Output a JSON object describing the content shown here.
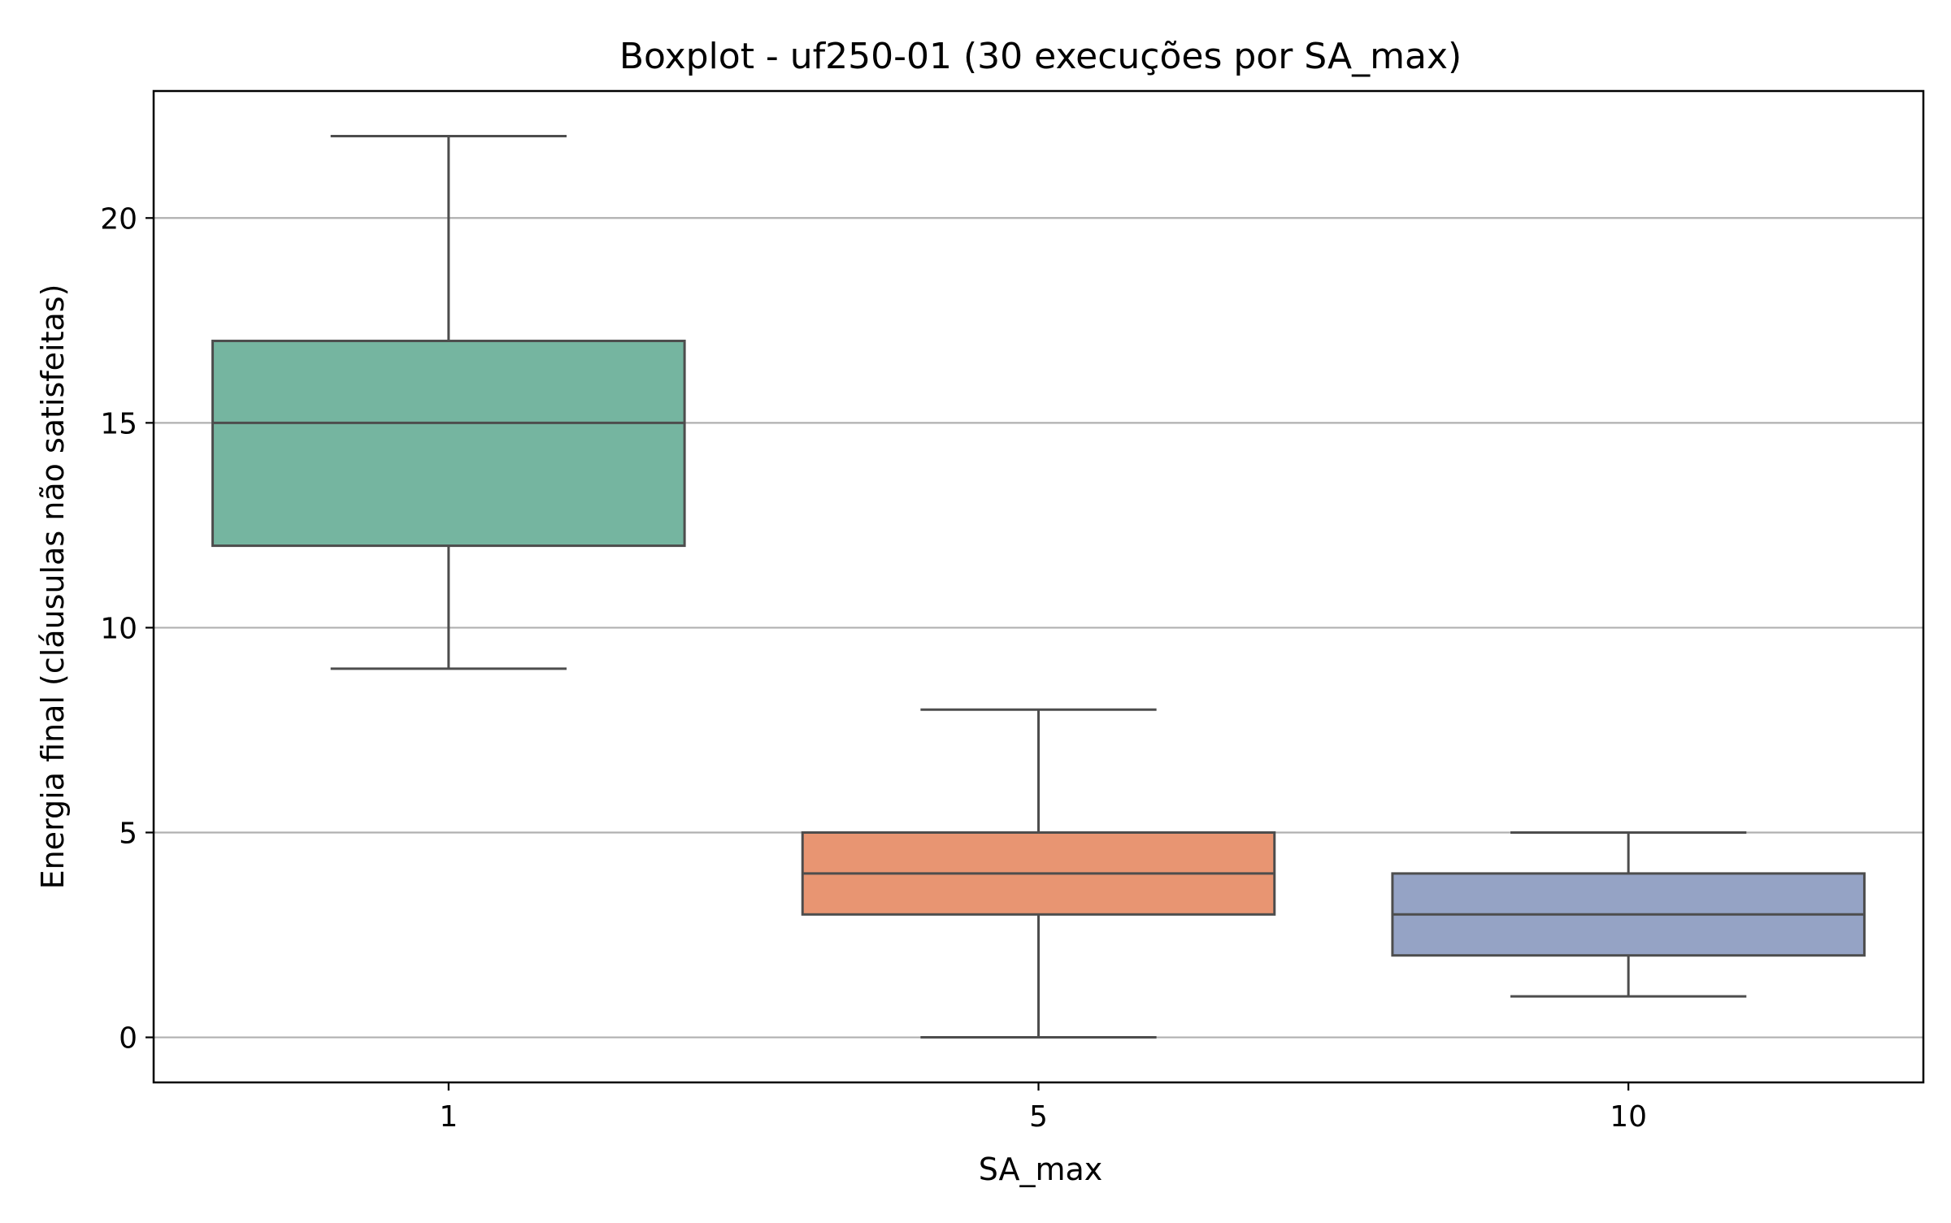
{
  "chart_data": {
    "type": "boxplot",
    "title": "Boxplot - uf250-01 (30 execuções por SA_max)",
    "xlabel": "SA_max",
    "ylabel": "Energia final (cláusulas não satisfeitas)",
    "categories": [
      "1",
      "5",
      "10"
    ],
    "yticks": [
      0,
      5,
      10,
      15,
      20
    ],
    "yticklabels": [
      "0",
      "5",
      "10",
      "15",
      "20"
    ],
    "ylim": [
      -1.1,
      23.1
    ],
    "grid": "y",
    "boxes": [
      {
        "category": "1",
        "whisker_low": 9,
        "q1": 12,
        "median": 15,
        "q3": 17,
        "whisker_high": 22,
        "color": "#75b5a0"
      },
      {
        "category": "5",
        "whisker_low": 0,
        "q1": 3,
        "median": 4,
        "q3": 5,
        "whisker_high": 8,
        "color": "#e89572"
      },
      {
        "category": "10",
        "whisker_low": 1,
        "q1": 2,
        "median": 3,
        "q3": 4,
        "whisker_high": 5,
        "color": "#95a3c5"
      }
    ],
    "line_color": "#4d4d4d",
    "grid_color": "#b0b0b0"
  }
}
